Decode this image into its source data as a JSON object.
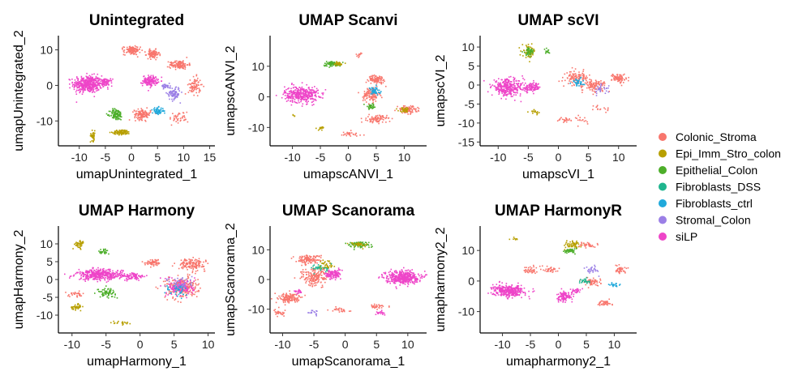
{
  "legend": {
    "title": "",
    "entries": [
      {
        "name": "Colonic_Stroma",
        "color": "#F8766D"
      },
      {
        "name": "Epi_Imm_Stro_colon",
        "color": "#B79F00"
      },
      {
        "name": "Epithelial_Colon",
        "color": "#4DAE2A"
      },
      {
        "name": "Fibroblasts_DSS",
        "color": "#1FB58E"
      },
      {
        "name": "Fibroblasts_ctrl",
        "color": "#20A9DB"
      },
      {
        "name": "Stromal_Colon",
        "color": "#9B7FE6"
      },
      {
        "name": "siLP",
        "color": "#EE45C8"
      }
    ]
  },
  "chart_data": [
    {
      "type": "scatter",
      "title": "Unintegrated",
      "xlabel": "umapUnintegrated_1",
      "ylabel": "umapUnintegrated_2",
      "xlim": [
        -14,
        16
      ],
      "ylim": [
        -17,
        14
      ],
      "xticks": [
        -10,
        -5,
        0,
        5,
        10,
        15
      ],
      "yticks": [
        -10,
        0,
        10
      ],
      "clusters": [
        {
          "x": -8.5,
          "y": 0.5,
          "sx": 2.3,
          "sy": 2.0,
          "type": "siLP",
          "n": 420
        },
        {
          "x": -5,
          "y": 1,
          "sx": 1.0,
          "sy": 0.8,
          "type": "siLP",
          "n": 80
        },
        {
          "x": 3.5,
          "y": 1.5,
          "sx": 1.2,
          "sy": 1.2,
          "type": "siLP",
          "n": 140
        },
        {
          "x": 0,
          "y": 10,
          "sx": 1.3,
          "sy": 1.0,
          "type": "Colonic_Stroma",
          "n": 120
        },
        {
          "x": 4,
          "y": 9,
          "sx": 1.0,
          "sy": 1.0,
          "type": "Colonic_Stroma",
          "n": 90
        },
        {
          "x": 9,
          "y": 6,
          "sx": 1.5,
          "sy": 1.0,
          "type": "Colonic_Stroma",
          "n": 120
        },
        {
          "x": -3,
          "y": -8,
          "sx": 1.0,
          "sy": 1.3,
          "type": "Epithelial_Colon",
          "n": 110
        },
        {
          "x": -2,
          "y": -13,
          "sx": 1.4,
          "sy": 0.6,
          "type": "Epi_Imm_Stro_colon",
          "n": 90
        },
        {
          "x": -7.5,
          "y": -14,
          "sx": 0.4,
          "sy": 1.2,
          "type": "Epi_Imm_Stro_colon",
          "n": 40
        },
        {
          "x": 2,
          "y": -8,
          "sx": 1.3,
          "sy": 1.2,
          "type": "Colonic_Stroma",
          "n": 120
        },
        {
          "x": 5,
          "y": -7,
          "sx": 0.9,
          "sy": 0.8,
          "type": "Fibroblasts_ctrl",
          "n": 60
        },
        {
          "x": 8,
          "y": -2,
          "sx": 1.0,
          "sy": 1.6,
          "type": "Stromal_Colon",
          "n": 90
        },
        {
          "x": 12,
          "y": 0,
          "sx": 1.0,
          "sy": 2.0,
          "type": "Colonic_Stroma",
          "n": 80
        },
        {
          "x": 6.5,
          "y": 0,
          "sx": 0.7,
          "sy": 0.5,
          "type": "Stromal_Colon",
          "n": 40
        },
        {
          "x": 9,
          "y": -9,
          "sx": 1.5,
          "sy": 1.5,
          "type": "Colonic_Stroma",
          "n": 40
        }
      ]
    },
    {
      "type": "scatter",
      "title": "UMAP Scanvi",
      "xlabel": "umapscANVI_1",
      "ylabel": "umapscANVI_2",
      "xlim": [
        -14,
        14
      ],
      "ylim": [
        -16,
        20
      ],
      "xticks": [
        -10,
        -5,
        0,
        5,
        10
      ],
      "yticks": [
        -10,
        0,
        10
      ],
      "clusters": [
        {
          "x": -8.5,
          "y": 1,
          "sx": 2.5,
          "sy": 2.2,
          "type": "siLP",
          "n": 360
        },
        {
          "x": 2,
          "y": 14,
          "sx": 0.6,
          "sy": 0.6,
          "type": "Colonic_Stroma",
          "n": 12
        },
        {
          "x": -3,
          "y": 11,
          "sx": 1.3,
          "sy": 0.7,
          "type": "Epithelial_Colon",
          "n": 70
        },
        {
          "x": -2,
          "y": 11,
          "sx": 0.8,
          "sy": 0.5,
          "type": "Epi_Imm_Stro_colon",
          "n": 40
        },
        {
          "x": 5,
          "y": 6,
          "sx": 1.2,
          "sy": 1.0,
          "type": "Colonic_Stroma",
          "n": 90
        },
        {
          "x": 4,
          "y": 1,
          "sx": 1.2,
          "sy": 2.0,
          "type": "Colonic_Stroma",
          "n": 120
        },
        {
          "x": 4.5,
          "y": 2,
          "sx": 0.9,
          "sy": 1.2,
          "type": "Fibroblasts_ctrl",
          "n": 50
        },
        {
          "x": 4,
          "y": -3,
          "sx": 1.0,
          "sy": 0.8,
          "type": "Epithelial_Colon",
          "n": 30
        },
        {
          "x": 5,
          "y": -7,
          "sx": 1.5,
          "sy": 1.0,
          "type": "Colonic_Stroma",
          "n": 90
        },
        {
          "x": 10.5,
          "y": -4,
          "sx": 1.5,
          "sy": 1.0,
          "type": "Colonic_Stroma",
          "n": 100
        },
        {
          "x": 10,
          "y": -4,
          "sx": 0.9,
          "sy": 0.6,
          "type": "Epi_Imm_Stro_colon",
          "n": 30
        },
        {
          "x": -5,
          "y": -10,
          "sx": 0.7,
          "sy": 0.6,
          "type": "Epi_Imm_Stro_colon",
          "n": 15
        },
        {
          "x": 0,
          "y": -12,
          "sx": 2.0,
          "sy": 0.8,
          "type": "Colonic_Stroma",
          "n": 30
        },
        {
          "x": -10,
          "y": -6,
          "sx": 0.4,
          "sy": 0.4,
          "type": "Epi_Imm_Stro_colon",
          "n": 6
        }
      ]
    },
    {
      "type": "scatter",
      "title": "UMAP scVI",
      "xlabel": "umapscVI_1",
      "ylabel": "umapscVI_2",
      "xlim": [
        -13,
        13
      ],
      "ylim": [
        -16,
        13
      ],
      "xticks": [
        -10,
        -5,
        0,
        5,
        10
      ],
      "yticks": [
        -15,
        -10,
        -5,
        0,
        5,
        10
      ],
      "clusters": [
        {
          "x": -8.5,
          "y": -0.5,
          "sx": 2.2,
          "sy": 1.8,
          "type": "siLP",
          "n": 300
        },
        {
          "x": -4.5,
          "y": -0.5,
          "sx": 1.2,
          "sy": 1.0,
          "type": "siLP",
          "n": 100
        },
        {
          "x": -5,
          "y": 9,
          "sx": 0.9,
          "sy": 1.3,
          "type": "Epi_Imm_Stro_colon",
          "n": 60
        },
        {
          "x": -5,
          "y": 9,
          "sx": 0.8,
          "sy": 0.9,
          "type": "Epithelial_Colon",
          "n": 40
        },
        {
          "x": -2,
          "y": 9,
          "sx": 0.5,
          "sy": 0.5,
          "type": "Epithelial_Colon",
          "n": 15
        },
        {
          "x": 3,
          "y": 2,
          "sx": 1.5,
          "sy": 1.5,
          "type": "Colonic_Stroma",
          "n": 120
        },
        {
          "x": 6,
          "y": 0,
          "sx": 1.5,
          "sy": 1.2,
          "type": "Colonic_Stroma",
          "n": 100
        },
        {
          "x": 3,
          "y": 1,
          "sx": 1.0,
          "sy": 1.0,
          "type": "Fibroblasts_ctrl",
          "n": 40
        },
        {
          "x": 10,
          "y": 2,
          "sx": 1.0,
          "sy": 1.0,
          "type": "Colonic_Stroma",
          "n": 80
        },
        {
          "x": 7,
          "y": -1,
          "sx": 1.0,
          "sy": 1.0,
          "type": "Stromal_Colon",
          "n": 30
        },
        {
          "x": -4,
          "y": -7,
          "sx": 0.8,
          "sy": 0.6,
          "type": "Epi_Imm_Stro_colon",
          "n": 20
        },
        {
          "x": 1,
          "y": -9,
          "sx": 1.0,
          "sy": 0.6,
          "type": "Colonic_Stroma",
          "n": 25
        },
        {
          "x": 4,
          "y": -9,
          "sx": 1.0,
          "sy": 1.0,
          "type": "Colonic_Stroma",
          "n": 15
        },
        {
          "x": 7,
          "y": -6,
          "sx": 1.0,
          "sy": 1.0,
          "type": "Colonic_Stroma",
          "n": 15
        }
      ]
    },
    {
      "type": "scatter",
      "title": "UMAP Harmony",
      "xlabel": "umapHarmony_1",
      "ylabel": "umapHarmony_2",
      "xlim": [
        -12,
        11
      ],
      "ylim": [
        -15,
        15
      ],
      "xticks": [
        -10,
        -5,
        0,
        5,
        10
      ],
      "yticks": [
        -10,
        -5,
        0,
        5,
        10
      ],
      "clusters": [
        {
          "x": -6,
          "y": 1.5,
          "sx": 2.8,
          "sy": 1.2,
          "type": "siLP",
          "n": 400
        },
        {
          "x": -1,
          "y": 1,
          "sx": 1.3,
          "sy": 0.9,
          "type": "siLP",
          "n": 80
        },
        {
          "x": -9,
          "y": 10,
          "sx": 0.6,
          "sy": 1.0,
          "type": "Epi_Imm_Stro_colon",
          "n": 40
        },
        {
          "x": -5.5,
          "y": 8,
          "sx": 0.7,
          "sy": 0.7,
          "type": "Epithelial_Colon",
          "n": 30
        },
        {
          "x": -5,
          "y": -3.5,
          "sx": 1.1,
          "sy": 1.0,
          "type": "Epithelial_Colon",
          "n": 70
        },
        {
          "x": -9.5,
          "y": -4,
          "sx": 1.0,
          "sy": 0.6,
          "type": "Colonic_Stroma",
          "n": 30
        },
        {
          "x": -9.5,
          "y": -7.5,
          "sx": 0.7,
          "sy": 0.6,
          "type": "Epi_Imm_Stro_colon",
          "n": 40
        },
        {
          "x": 2,
          "y": 5,
          "sx": 1.0,
          "sy": 0.8,
          "type": "Colonic_Stroma",
          "n": 60
        },
        {
          "x": 7.5,
          "y": 4.5,
          "sx": 1.6,
          "sy": 1.2,
          "type": "Colonic_Stroma",
          "n": 150
        },
        {
          "x": 6,
          "y": -2,
          "sx": 2.0,
          "sy": 2.5,
          "type": "Colonic_Stroma",
          "n": 230
        },
        {
          "x": 6,
          "y": -2,
          "sx": 1.6,
          "sy": 2.0,
          "type": "siLP",
          "n": 120
        },
        {
          "x": 6,
          "y": -1,
          "sx": 1.5,
          "sy": 2.0,
          "type": "Stromal_Colon",
          "n": 50
        },
        {
          "x": 5.5,
          "y": -3,
          "sx": 1.5,
          "sy": 1.5,
          "type": "Fibroblasts_ctrl",
          "n": 40
        },
        {
          "x": -3,
          "y": -12,
          "sx": 1.2,
          "sy": 0.5,
          "type": "Epi_Imm_Stro_colon",
          "n": 20
        }
      ]
    },
    {
      "type": "scatter",
      "title": "UMAP Scanorama",
      "xlabel": "umapScanorama_1",
      "ylabel": "umapScanorama_2",
      "xlim": [
        -12,
        13
      ],
      "ylim": [
        -18,
        18
      ],
      "xticks": [
        -10,
        -5,
        0,
        5,
        10
      ],
      "yticks": [
        -10,
        0,
        10
      ],
      "clusters": [
        {
          "x": 9,
          "y": 1,
          "sx": 2.2,
          "sy": 1.8,
          "type": "siLP",
          "n": 400
        },
        {
          "x": 2,
          "y": 12,
          "sx": 1.6,
          "sy": 0.9,
          "type": "Epithelial_Colon",
          "n": 80
        },
        {
          "x": 2,
          "y": 12,
          "sx": 1.2,
          "sy": 0.7,
          "type": "Epi_Imm_Stro_colon",
          "n": 30
        },
        {
          "x": -6,
          "y": 7,
          "sx": 1.6,
          "sy": 1.2,
          "type": "Colonic_Stroma",
          "n": 120
        },
        {
          "x": -5,
          "y": 1,
          "sx": 1.8,
          "sy": 2.5,
          "type": "Colonic_Stroma",
          "n": 180
        },
        {
          "x": -2,
          "y": 2,
          "sx": 1.0,
          "sy": 1.4,
          "type": "siLP",
          "n": 120
        },
        {
          "x": -3,
          "y": 5,
          "sx": 1.2,
          "sy": 1.5,
          "type": "Epi_Imm_Stro_colon",
          "n": 40
        },
        {
          "x": -4,
          "y": 4,
          "sx": 1.2,
          "sy": 1.2,
          "type": "Fibroblasts_DSS",
          "n": 30
        },
        {
          "x": -9,
          "y": -6,
          "sx": 1.6,
          "sy": 1.4,
          "type": "Colonic_Stroma",
          "n": 130
        },
        {
          "x": -10.5,
          "y": -11,
          "sx": 0.8,
          "sy": 0.8,
          "type": "Colonic_Stroma",
          "n": 30
        },
        {
          "x": -7.5,
          "y": -4,
          "sx": 0.6,
          "sy": 0.5,
          "type": "siLP",
          "n": 20
        },
        {
          "x": 5,
          "y": -9,
          "sx": 1.0,
          "sy": 0.8,
          "type": "Colonic_Stroma",
          "n": 30
        },
        {
          "x": 5.5,
          "y": -11,
          "sx": 0.6,
          "sy": 0.5,
          "type": "siLP",
          "n": 20
        },
        {
          "x": -1,
          "y": -10,
          "sx": 1.2,
          "sy": 0.8,
          "type": "Colonic_Stroma",
          "n": 25
        },
        {
          "x": -5,
          "y": -11,
          "sx": 1.0,
          "sy": 0.8,
          "type": "Stromal_Colon",
          "n": 15
        }
      ]
    },
    {
      "type": "scatter",
      "title": "UMAP HarmonyR",
      "xlabel": "umapharmony2_1",
      "ylabel": "umapharmony2_2",
      "xlim": [
        -14,
        14
      ],
      "ylim": [
        -17,
        18
      ],
      "xticks": [
        -10,
        -5,
        0,
        5,
        10
      ],
      "yticks": [
        -10,
        0,
        10
      ],
      "clusters": [
        {
          "x": -9,
          "y": -3,
          "sx": 2.3,
          "sy": 1.5,
          "type": "siLP",
          "n": 340
        },
        {
          "x": 1,
          "y": -5,
          "sx": 1.1,
          "sy": 1.5,
          "type": "siLP",
          "n": 110
        },
        {
          "x": 3,
          "y": -3,
          "sx": 0.7,
          "sy": 0.6,
          "type": "siLP",
          "n": 30
        },
        {
          "x": 2.5,
          "y": 12,
          "sx": 1.3,
          "sy": 1.0,
          "type": "Epi_Imm_Stro_colon",
          "n": 60
        },
        {
          "x": 2,
          "y": 10,
          "sx": 0.9,
          "sy": 0.7,
          "type": "Epithelial_Colon",
          "n": 40
        },
        {
          "x": 5,
          "y": 12,
          "sx": 1.0,
          "sy": 0.7,
          "type": "Colonic_Stroma",
          "n": 40
        },
        {
          "x": -5,
          "y": 4,
          "sx": 1.0,
          "sy": 1.0,
          "type": "Colonic_Stroma",
          "n": 40
        },
        {
          "x": -1.5,
          "y": 4,
          "sx": 0.9,
          "sy": 1.0,
          "type": "Colonic_Stroma",
          "n": 40
        },
        {
          "x": 6,
          "y": 0,
          "sx": 1.3,
          "sy": 1.0,
          "type": "Colonic_Stroma",
          "n": 60
        },
        {
          "x": 4.5,
          "y": 0,
          "sx": 0.8,
          "sy": 0.7,
          "type": "Fibroblasts_DSS",
          "n": 25
        },
        {
          "x": 10,
          "y": -1,
          "sx": 0.8,
          "sy": 0.6,
          "type": "Fibroblasts_ctrl",
          "n": 20
        },
        {
          "x": 11,
          "y": 4,
          "sx": 0.9,
          "sy": 1.0,
          "type": "Colonic_Stroma",
          "n": 40
        },
        {
          "x": 8,
          "y": -7,
          "sx": 1.2,
          "sy": 0.8,
          "type": "Colonic_Stroma",
          "n": 40
        },
        {
          "x": -8,
          "y": 14,
          "sx": 0.5,
          "sy": 0.5,
          "type": "Epi_Imm_Stro_colon",
          "n": 8
        },
        {
          "x": 6,
          "y": 4,
          "sx": 1.0,
          "sy": 1.2,
          "type": "Stromal_Colon",
          "n": 25
        }
      ]
    }
  ]
}
